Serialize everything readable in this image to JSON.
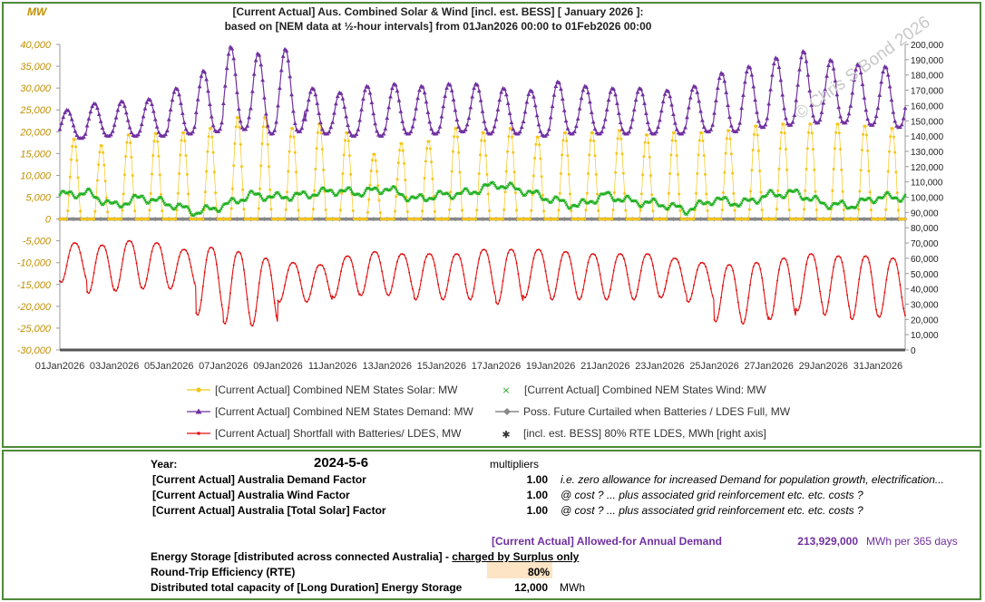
{
  "chart_data": {
    "type": "line",
    "title_line1": "[Current Actual] Aus. Combined Solar & Wind [incl. est. BESS] [ January 2026 ]:",
    "title_line2": "based on  [NEM data at ½-hour intervals] from 01Jan2026 00:00 to 01Feb2026 00:00",
    "ylabel": "MW",
    "watermark": "© Chris S Bond  2026",
    "ylim": [
      -30000,
      40000
    ],
    "y2lim": [
      0,
      200000
    ],
    "xlim_days": [
      0,
      31
    ],
    "left_ticks": [
      "40,000",
      "35,000",
      "30,000",
      "25,000",
      "20,000",
      "15,000",
      "10,000",
      "5,000",
      "0",
      "-5,000",
      "-10,000",
      "-15,000",
      "-20,000",
      "-25,000",
      "-30,000"
    ],
    "right_ticks": [
      "200,000",
      "190,000",
      "180,000",
      "170,000",
      "160,000",
      "150,000",
      "140,000",
      "130,000",
      "120,000",
      "110,000",
      "100,000",
      "90,000",
      "80,000",
      "70,000",
      "60,000",
      "50,000",
      "40,000",
      "30,000",
      "20,000",
      "10,000",
      "0"
    ],
    "x_ticks": [
      "01Jan2026",
      "03Jan2026",
      "05Jan2026",
      "07Jan2026",
      "09Jan2026",
      "11Jan2026",
      "13Jan2026",
      "15Jan2026",
      "17Jan2026",
      "19Jan2026",
      "21Jan2026",
      "23Jan2026",
      "25Jan2026",
      "27Jan2026",
      "29Jan2026",
      "31Jan2026"
    ],
    "series": [
      {
        "name": "[Current Actual] Combined NEM States Solar: MW",
        "color": "#f5c518",
        "marker": "circle",
        "daily_peak": [
          18500,
          17000,
          19500,
          19800,
          20000,
          21000,
          23500,
          23500,
          21000,
          22000,
          20000,
          15000,
          17500,
          18000,
          21000,
          20000,
          21000,
          19000,
          20000,
          20000,
          20500,
          19500,
          20000,
          20000,
          20500,
          21500,
          22000,
          22000,
          22000,
          21500,
          21000
        ]
      },
      {
        "name": "[Current Actual] Combined NEM States Wind: MW",
        "color": "#22b022",
        "marker": "x",
        "daily": [
          5500,
          6000,
          3000,
          5000,
          3500,
          1500,
          3000,
          5500,
          5000,
          5500,
          6500,
          6000,
          7000,
          4500,
          5500,
          6000,
          8000,
          6500,
          4500,
          3000,
          5500,
          4000,
          3500,
          2000,
          4500,
          3500,
          5500,
          6000,
          3500,
          3000,
          5000
        ]
      },
      {
        "name": "[Current Actual] Combined NEM States Demand: MW",
        "color": "#7030a0",
        "marker": "triangle",
        "daily_peak": [
          25000,
          26500,
          27000,
          27500,
          30000,
          34000,
          39500,
          38000,
          39000,
          30000,
          29000,
          30500,
          31000,
          30500,
          31000,
          31000,
          30000,
          29500,
          31500,
          30500,
          30000,
          30000,
          29500,
          30500,
          33500,
          35000,
          37000,
          38500,
          36500,
          35500,
          35000
        ],
        "daily_min": [
          18500,
          19000,
          19000,
          19000,
          19500,
          20000,
          20500,
          19500,
          20000,
          19500,
          19000,
          19000,
          19500,
          19500,
          20000,
          19500,
          19500,
          19000,
          19500,
          19500,
          19500,
          19500,
          19500,
          20000,
          20000,
          21000,
          21500,
          22000,
          22000,
          21500,
          21000
        ]
      },
      {
        "name": "Poss. Future Curtailed when Batteries / LDES Full, MW",
        "color": "#888888",
        "marker": "diamond",
        "value": 0
      },
      {
        "name": "[Current Actual]  Shortfall with Batteries/ LDES, MW",
        "color": "#e01010",
        "marker": "dot",
        "daily_min": [
          -14500,
          -17000,
          -16500,
          -16000,
          -16000,
          -22000,
          -24000,
          -24500,
          -19000,
          -19000,
          -18000,
          -17500,
          -17500,
          -18500,
          -18500,
          -18500,
          -19500,
          -18000,
          -18500,
          -18500,
          -18500,
          -18500,
          -18000,
          -19000,
          -23500,
          -24000,
          -23000,
          -21000,
          -22000,
          -23000,
          -22500
        ],
        "daily_max": [
          -5500,
          -6000,
          -5000,
          -5500,
          -7000,
          -6500,
          -7500,
          -9000,
          -10000,
          -10500,
          -8500,
          -7500,
          -8000,
          -8000,
          -8000,
          -7000,
          -7000,
          -7000,
          -7500,
          -8000,
          -8000,
          -8000,
          -9000,
          -10000,
          -10500,
          -10000,
          -9000,
          -8000,
          -8500,
          -8500,
          -9000
        ]
      },
      {
        "name": "[incl. est. BESS] 80% RTE LDES, MWh [right axis]",
        "color": "#333333",
        "marker": "asterisk",
        "value": 0
      }
    ]
  },
  "panel": {
    "year_label": "Year:",
    "year_value": "2024-5-6",
    "multipliers_label": "multipliers",
    "rows": [
      {
        "label": "[Current Actual]  Australia Demand Factor",
        "value": "1.00",
        "note": "i.e. zero allowance for increased Demand for population growth, electrification..."
      },
      {
        "label": "[Current Actual]  Australia Wind Factor",
        "value": "1.00",
        "note": "@ cost ?   ... plus associated grid reinforcement etc. etc. costs ?"
      },
      {
        "label": "[Current Actual]  Australia [Total Solar] Factor",
        "value": "1.00",
        "note": "@ cost ?   ... plus associated grid reinforcement etc. etc. costs ?"
      }
    ],
    "annual_label": "[Current Actual]  Allowed-for Annual Demand",
    "annual_value": "213,929,000",
    "annual_unit": "MWh per 365 days",
    "storage_text": "Energy Storage [distributed across connected Australia] - ",
    "storage_text_underline": "charged by Surplus only",
    "rte_label": "Round-Trip Efficiency (RTE)",
    "rte_value": "80%",
    "capacity_label": "Distributed total capacity of [Long Duration] Energy Storage",
    "capacity_value": "12,000",
    "capacity_unit": "MWh"
  }
}
